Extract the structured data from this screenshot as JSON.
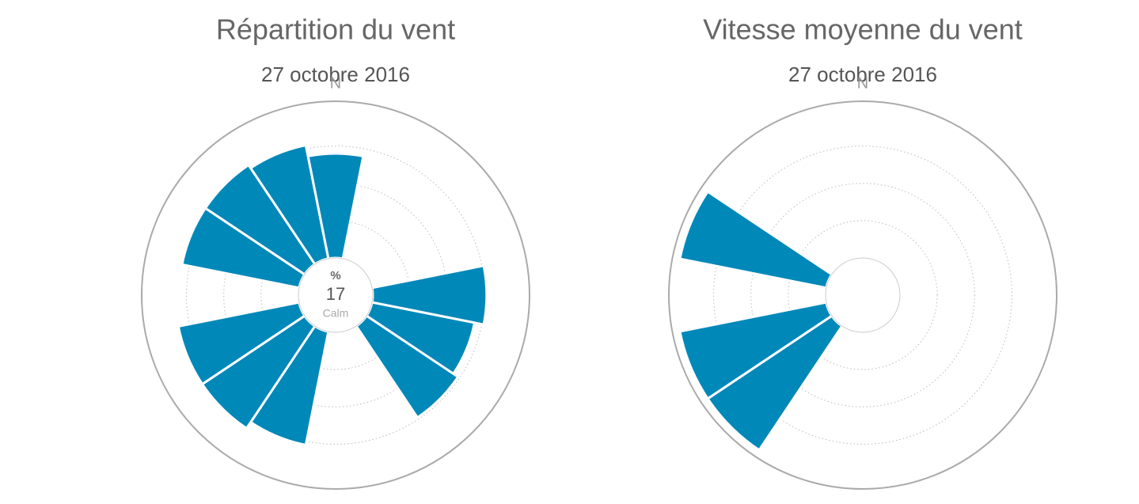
{
  "chart_data": [
    {
      "type": "windrose",
      "title": "Répartition du vent",
      "subtitle": "27 octobre 2016",
      "categories": [
        "N",
        null,
        null,
        null,
        null,
        null,
        null,
        null,
        null,
        null,
        null,
        null,
        null,
        null,
        null,
        null
      ],
      "values": [
        2.8,
        null,
        null,
        null,
        3.05,
        2.8,
        2.95,
        null,
        null,
        3.1,
        3.3,
        3.3,
        null,
        3.2,
        3.2,
        3.1
      ],
      "color": "#0088b9",
      "rlim": [
        0,
        4.2
      ],
      "rticks": [
        1,
        2,
        3
      ],
      "grid": true,
      "calm_unit": "%",
      "calm_value": 17,
      "calm_label": "Calm"
    },
    {
      "type": "windrose",
      "title": "Vitesse moyenne du vent",
      "subtitle": "27 octobre 2016",
      "categories": [
        "N",
        null,
        null,
        null,
        null,
        null,
        null,
        null,
        null,
        null,
        null,
        null,
        null,
        null,
        null,
        null
      ],
      "values": [
        null,
        null,
        null,
        null,
        null,
        null,
        null,
        null,
        null,
        null,
        4.0,
        4.0,
        null,
        4.0,
        null,
        null
      ],
      "color": "#0088b9",
      "rlim": [
        0,
        4.2
      ],
      "rticks": [
        1,
        2,
        3
      ],
      "grid": true
    }
  ]
}
